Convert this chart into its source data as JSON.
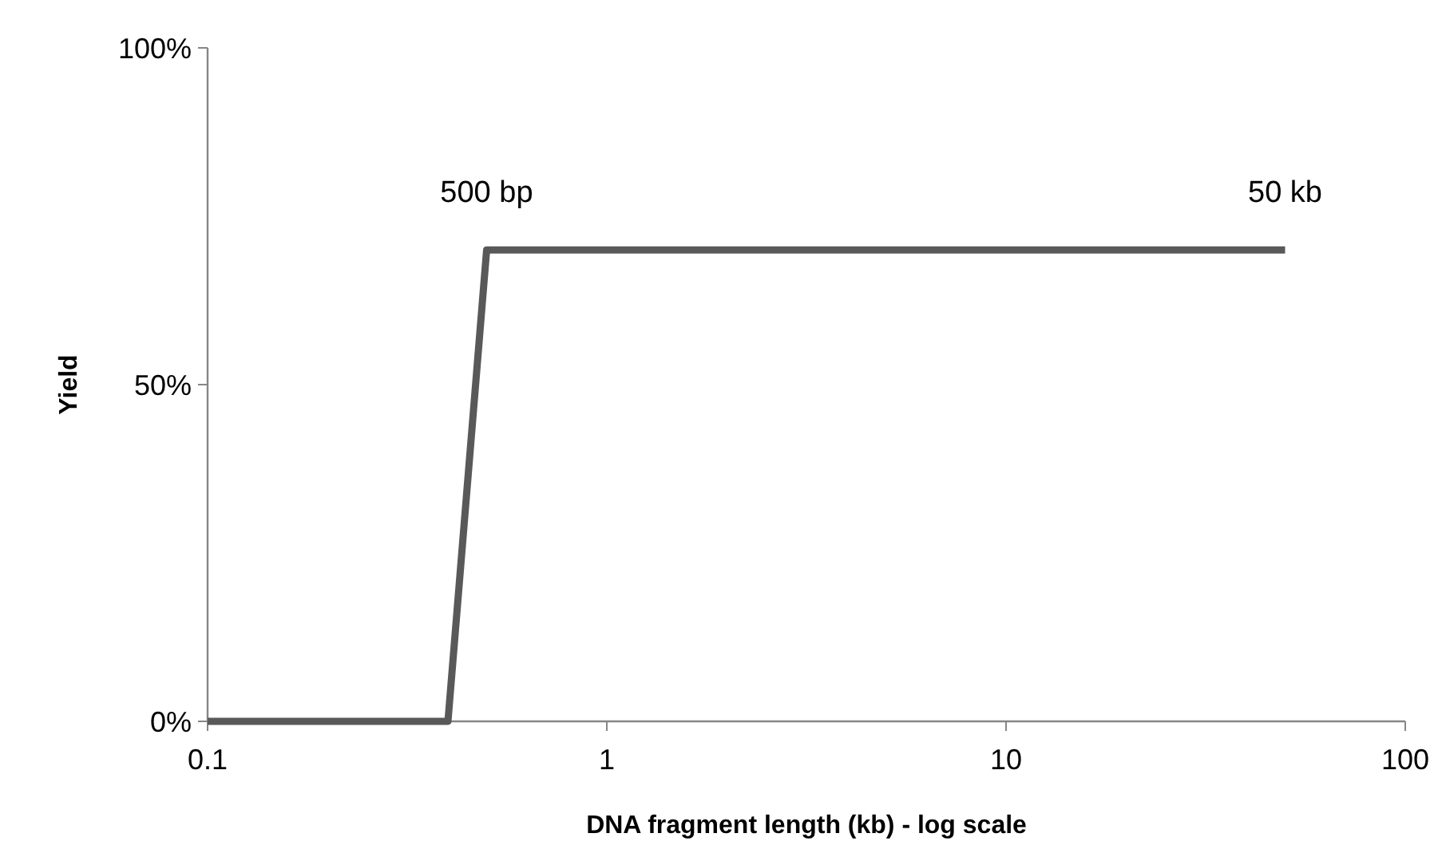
{
  "chart_data": {
    "type": "line",
    "xlabel": "DNA fragment length (kb) - log scale",
    "ylabel": "Yield",
    "x": [
      0.1,
      0.4,
      0.5,
      50
    ],
    "series": [
      {
        "color": "#595959",
        "values": [
          0,
          0,
          70,
          70
        ]
      }
    ],
    "xlim": [
      0.1,
      100
    ],
    "xticks": [
      0.1,
      1,
      10,
      100
    ],
    "ylim": [
      0,
      100
    ],
    "yticks": [
      {
        "value": 0,
        "label": "0%"
      },
      {
        "value": 50,
        "label": "50%"
      },
      {
        "value": 100,
        "label": "100%"
      }
    ],
    "log": "x",
    "grid": false,
    "marker": "none",
    "line_style": "solid",
    "annotations": [
      {
        "text": "500 bp",
        "x": 0.5,
        "y": 70
      },
      {
        "text": "50 kb",
        "x": 50,
        "y": 70
      }
    ]
  }
}
